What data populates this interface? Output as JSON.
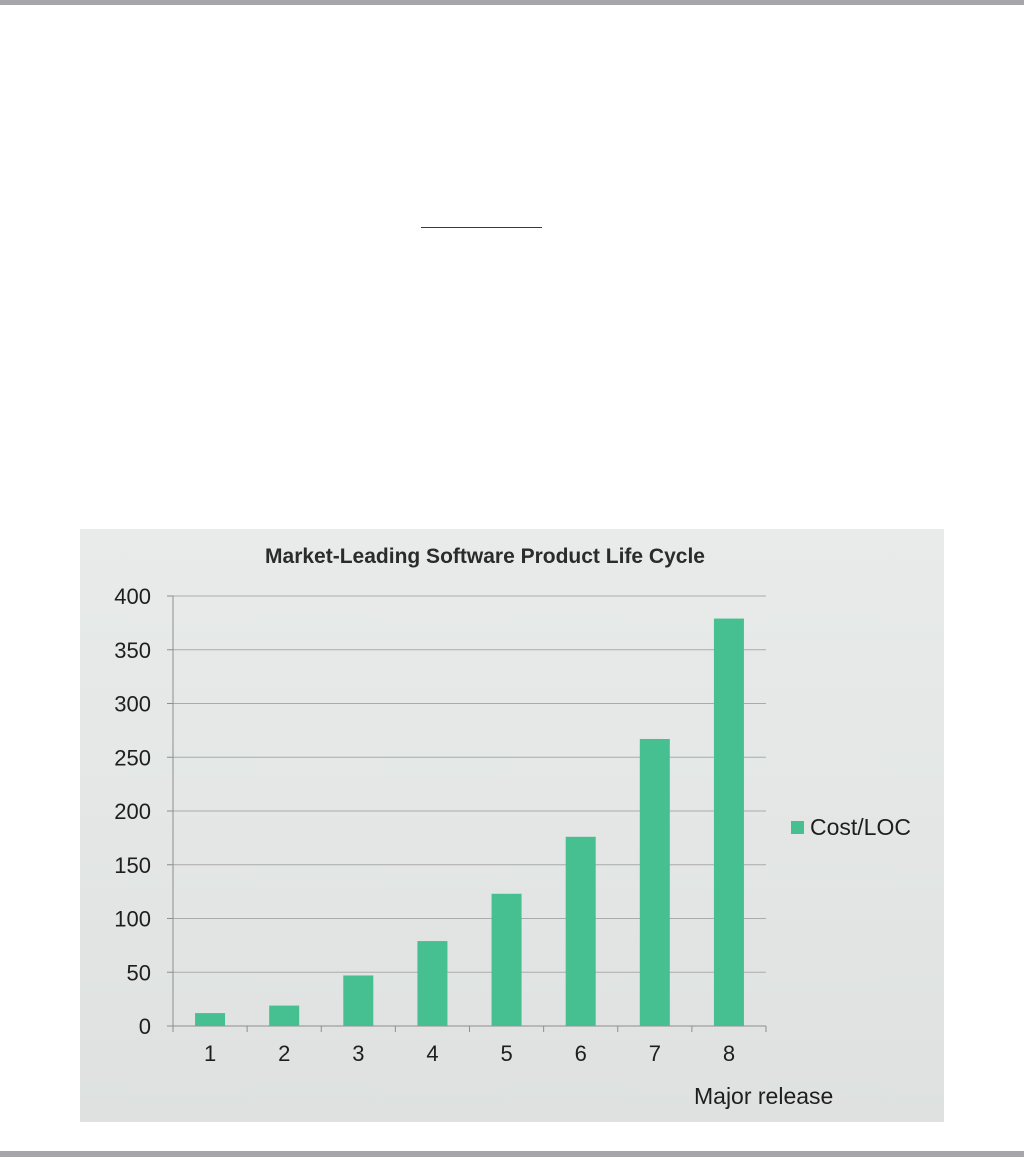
{
  "chart_data": {
    "type": "bar",
    "title": "Market-Leading Software Product Life Cycle",
    "xlabel": "Major release",
    "ylabel": "",
    "categories": [
      "1",
      "2",
      "3",
      "4",
      "5",
      "6",
      "7",
      "8"
    ],
    "series": [
      {
        "name": "Cost/LOC",
        "values": [
          12,
          19,
          47,
          79,
          123,
          176,
          267,
          379
        ],
        "color": "#46bf91"
      }
    ],
    "ylim": [
      0,
      400
    ],
    "yticks": [
      0,
      50,
      100,
      150,
      200,
      250,
      300,
      350,
      400
    ],
    "grid": true,
    "legend_position": "right"
  }
}
